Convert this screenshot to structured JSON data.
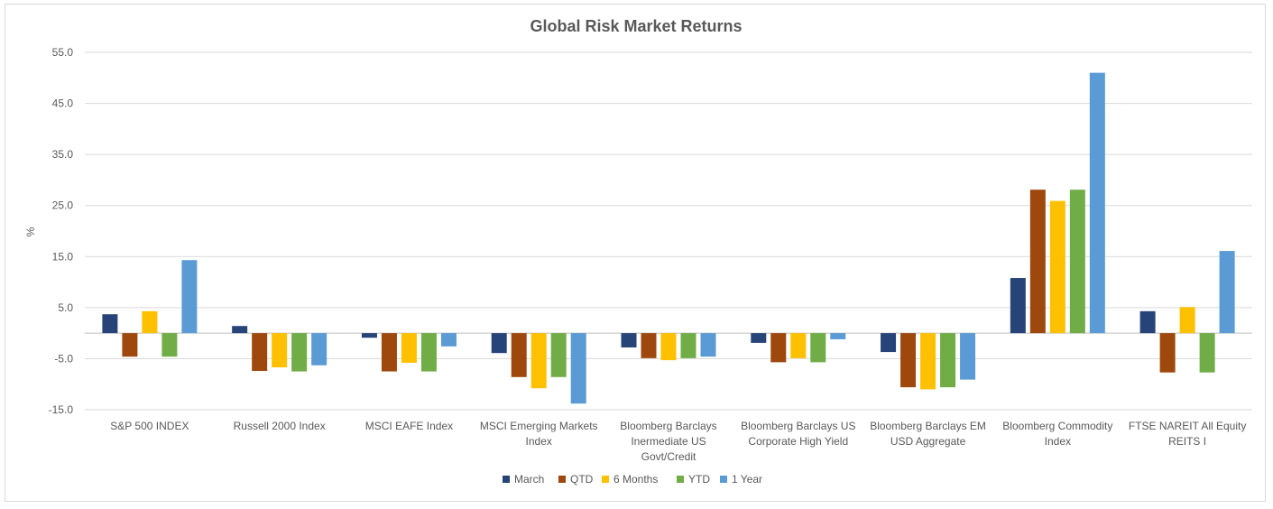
{
  "chart_data": {
    "type": "bar",
    "title": "Global Risk Market Returns",
    "ylabel": "%",
    "xlabel": "",
    "ylim": [
      -15,
      55
    ],
    "yticks": [
      "55.0",
      "45.0",
      "35.0",
      "25.0",
      "15.0",
      "5.0",
      "-5.0",
      "-15.0"
    ],
    "ytick_values": [
      55,
      45,
      35,
      25,
      15,
      5,
      -5,
      -15
    ],
    "grid": true,
    "legend_position": "bottom",
    "categories": [
      "S&P 500 INDEX",
      "Russell 2000 Index",
      "MSCI EAFE Index",
      "MSCI Emerging Markets Index",
      "Bloomberg Barclays Inermediate US Govt/Credit",
      "Bloomberg Barclays US Corporate High Yield",
      "Bloomberg Barclays EM USD Aggregate",
      "Bloomberg Commodity Index",
      "FTSE NAREIT All Equity REITS I"
    ],
    "category_lines": [
      [
        "S&P 500 INDEX"
      ],
      [
        "Russell 2000 Index"
      ],
      [
        "MSCI EAFE Index"
      ],
      [
        "MSCI Emerging Markets",
        "Index"
      ],
      [
        "Bloomberg Barclays",
        "Inermediate US",
        "Govt/Credit"
      ],
      [
        "Bloomberg Barclays US",
        "Corporate High Yield"
      ],
      [
        "Bloomberg Barclays EM",
        "USD Aggregate"
      ],
      [
        "Bloomberg Commodity",
        "Index"
      ],
      [
        "FTSE NAREIT All Equity",
        "REITS I"
      ]
    ],
    "series": [
      {
        "name": "March",
        "color": "#264478",
        "values": [
          3.7,
          1.4,
          -0.9,
          -3.9,
          -2.8,
          -1.9,
          -3.7,
          10.8,
          4.3
        ]
      },
      {
        "name": "QTD",
        "color": "#9e480e",
        "values": [
          -4.6,
          -7.4,
          -7.5,
          -8.6,
          -4.9,
          -5.7,
          -10.6,
          28.1,
          -7.7
        ]
      },
      {
        "name": "6 Months",
        "color": "#ffc000",
        "values": [
          4.3,
          -6.7,
          -5.8,
          -10.8,
          -5.3,
          -4.9,
          -11.0,
          25.9,
          5.1
        ]
      },
      {
        "name": "YTD",
        "color": "#70ad47",
        "values": [
          -4.6,
          -7.5,
          -7.5,
          -8.6,
          -4.9,
          -5.7,
          -10.6,
          28.1,
          -7.7
        ]
      },
      {
        "name": "1 Year",
        "color": "#5b9bd5",
        "values": [
          14.3,
          -6.3,
          -2.6,
          -13.8,
          -4.6,
          -1.2,
          -9.1,
          51.0,
          16.1
        ]
      }
    ]
  }
}
